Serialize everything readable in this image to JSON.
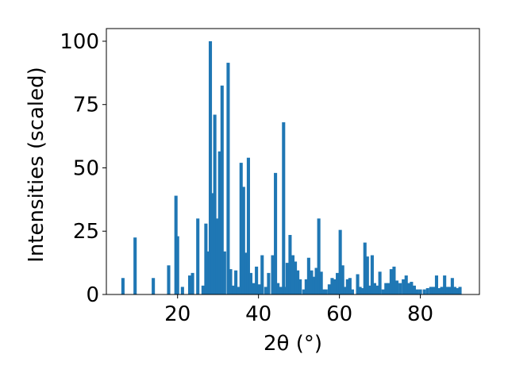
{
  "chart_data": {
    "type": "bar",
    "xlabel": "2θ (°)",
    "ylabel": "Intensities (scaled)",
    "xlim": [
      2.4,
      94.6
    ],
    "ylim": [
      0,
      105
    ],
    "xticks": [
      20,
      40,
      60,
      80
    ],
    "yticks": [
      0,
      25,
      50,
      75,
      100
    ],
    "grid": false,
    "bar_color": "#1f77b4",
    "bar_width": 0.8,
    "series": [
      {
        "x": [
          6.5,
          9.5,
          14.0,
          17.8,
          19.6,
          20.0,
          21.2,
          23.0,
          23.7,
          25.0,
          26.3,
          27.0,
          27.5,
          28.1,
          28.6,
          29.2,
          29.8,
          30.4,
          31.0,
          31.6,
          32.5,
          33.1,
          33.8,
          34.4,
          35.1,
          35.7,
          36.3,
          36.9,
          37.5,
          38.1,
          38.8,
          39.5,
          40.2,
          40.9,
          41.8,
          42.5,
          43.5,
          44.2,
          44.8,
          45.5,
          46.2,
          46.6,
          47.1,
          47.8,
          48.5,
          49.1,
          49.7,
          50.3,
          51.2,
          51.8,
          52.4,
          53.1,
          53.7,
          54.3,
          54.9,
          55.5,
          56.1,
          56.7,
          57.5,
          58.2,
          58.8,
          59.5,
          60.2,
          60.8,
          61.4,
          62.0,
          62.6,
          63.2,
          64.5,
          65.1,
          65.7,
          66.3,
          66.9,
          67.5,
          68.1,
          68.7,
          69.3,
          70.0,
          70.8,
          71.5,
          72.2,
          72.8,
          73.5,
          74.2,
          75.0,
          75.8,
          76.5,
          77.2,
          77.8,
          78.5,
          79.2,
          80.0,
          81.0,
          81.8,
          82.6,
          83.3,
          84.0,
          84.6,
          85.3,
          86.0,
          86.6,
          87.2,
          87.9,
          88.5,
          89.2,
          89.8
        ],
        "values": [
          6.5,
          22.5,
          6.5,
          11.5,
          39.0,
          23.0,
          3.0,
          7.5,
          8.5,
          30.0,
          3.5,
          28.0,
          17.0,
          100.0,
          40.0,
          71.0,
          30.0,
          56.5,
          82.5,
          17.0,
          91.5,
          10.0,
          3.5,
          9.5,
          3.0,
          52.0,
          42.5,
          16.5,
          54.0,
          8.5,
          4.5,
          11.0,
          4.0,
          15.5,
          3.0,
          8.5,
          15.5,
          48.0,
          4.5,
          3.0,
          68.0,
          3.0,
          12.5,
          23.5,
          15.5,
          13.0,
          9.5,
          6.0,
          2.0,
          6.0,
          14.5,
          9.5,
          7.0,
          10.5,
          30.0,
          9.0,
          2.0,
          2.0,
          4.0,
          6.5,
          6.0,
          8.5,
          25.5,
          11.5,
          3.0,
          6.0,
          6.5,
          2.0,
          8.0,
          3.0,
          2.5,
          20.5,
          15.0,
          3.5,
          15.5,
          4.5,
          3.5,
          9.0,
          2.0,
          4.5,
          4.5,
          10.0,
          11.0,
          5.5,
          4.5,
          6.0,
          7.5,
          4.5,
          5.0,
          3.5,
          2.0,
          2.0,
          2.0,
          2.5,
          3.0,
          3.0,
          7.5,
          2.5,
          3.0,
          7.5,
          3.0,
          3.0,
          6.5,
          3.0,
          2.5,
          3.0
        ]
      }
    ]
  }
}
